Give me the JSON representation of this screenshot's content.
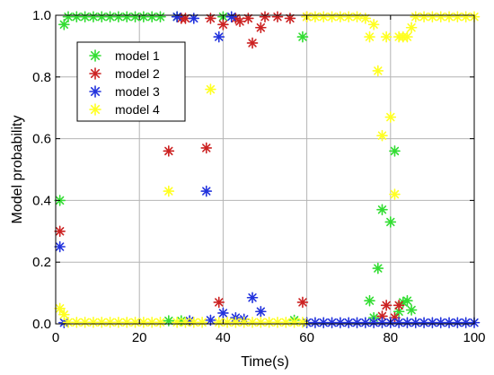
{
  "chart_data": {
    "type": "scatter",
    "title": "",
    "xlabel": "Time(s)",
    "ylabel": "Model probability",
    "xlim": [
      0,
      100
    ],
    "ylim": [
      0,
      1.0
    ],
    "xticks": [
      0,
      20,
      40,
      60,
      80,
      100
    ],
    "xtick_labels": [
      "0",
      "20",
      "40",
      "60",
      "80",
      "100"
    ],
    "yticks": [
      0.0,
      0.2,
      0.4,
      0.6,
      0.8,
      1.0
    ],
    "ytick_labels": [
      "0.0",
      "0.2",
      "0.4",
      "0.6",
      "0.8",
      "1.0"
    ],
    "grid": true,
    "legend_position": "top-left",
    "series": [
      {
        "name": "model 1",
        "color": "#33dd33",
        "points": [
          [
            1,
            0.4
          ],
          [
            2,
            0.97
          ],
          [
            3,
            0.995
          ],
          [
            5,
            0.995
          ],
          [
            7,
            0.995
          ],
          [
            9,
            0.995
          ],
          [
            11,
            0.995
          ],
          [
            13,
            0.995
          ],
          [
            15,
            0.995
          ],
          [
            17,
            0.995
          ],
          [
            19,
            0.995
          ],
          [
            21,
            0.995
          ],
          [
            23,
            0.995
          ],
          [
            25,
            0.995
          ],
          [
            27,
            0.01
          ],
          [
            29,
            0.995
          ],
          [
            30,
            0.01
          ],
          [
            40,
            0.995
          ],
          [
            57,
            0.012
          ],
          [
            59,
            0.93
          ],
          [
            75,
            0.075
          ],
          [
            76,
            0.02
          ],
          [
            77,
            0.18
          ],
          [
            78,
            0.37
          ],
          [
            80,
            0.33
          ],
          [
            81,
            0.56
          ],
          [
            82,
            0.04
          ],
          [
            83,
            0.07
          ],
          [
            84,
            0.075
          ],
          [
            85,
            0.045
          ]
        ]
      },
      {
        "name": "model 2",
        "color": "#cc2222",
        "points": [
          [
            1,
            0.3
          ],
          [
            27,
            0.56
          ],
          [
            30,
            0.99
          ],
          [
            31,
            0.99
          ],
          [
            36,
            0.57
          ],
          [
            37,
            0.99
          ],
          [
            39,
            0.07
          ],
          [
            40,
            0.97
          ],
          [
            43,
            0.99
          ],
          [
            44,
            0.98
          ],
          [
            46,
            0.99
          ],
          [
            47,
            0.91
          ],
          [
            49,
            0.96
          ],
          [
            50,
            0.995
          ],
          [
            53,
            0.995
          ],
          [
            56,
            0.99
          ],
          [
            59,
            0.07
          ],
          [
            60,
            0.995
          ],
          [
            78,
            0.025
          ],
          [
            79,
            0.06
          ],
          [
            81,
            0.02
          ],
          [
            82,
            0.06
          ]
        ]
      },
      {
        "name": "model 3",
        "color": "#2233dd",
        "points": [
          [
            1,
            0.25
          ],
          [
            2,
            0.004
          ],
          [
            29,
            0.995
          ],
          [
            32,
            0.01
          ],
          [
            33,
            0.99
          ],
          [
            36,
            0.43
          ],
          [
            37,
            0.012
          ],
          [
            39,
            0.93
          ],
          [
            40,
            0.035
          ],
          [
            42,
            0.995
          ],
          [
            43,
            0.02
          ],
          [
            45,
            0.015
          ],
          [
            47,
            0.085
          ],
          [
            49,
            0.04
          ],
          [
            60,
            0.004
          ],
          [
            62,
            0.004
          ],
          [
            64,
            0.004
          ],
          [
            66,
            0.004
          ],
          [
            68,
            0.004
          ],
          [
            70,
            0.004
          ],
          [
            72,
            0.004
          ],
          [
            74,
            0.004
          ],
          [
            76,
            0.004
          ],
          [
            78,
            0.004
          ],
          [
            80,
            0.004
          ],
          [
            82,
            0.004
          ],
          [
            84,
            0.004
          ],
          [
            86,
            0.004
          ],
          [
            88,
            0.004
          ],
          [
            90,
            0.004
          ],
          [
            92,
            0.004
          ],
          [
            94,
            0.004
          ],
          [
            96,
            0.004
          ],
          [
            98,
            0.004
          ],
          [
            100,
            0.004
          ]
        ]
      },
      {
        "name": "model 4",
        "color": "#ffff22",
        "points": [
          [
            1,
            0.05
          ],
          [
            2,
            0.03
          ],
          [
            3,
            0.005
          ],
          [
            5,
            0.005
          ],
          [
            7,
            0.005
          ],
          [
            9,
            0.005
          ],
          [
            11,
            0.005
          ],
          [
            13,
            0.005
          ],
          [
            15,
            0.005
          ],
          [
            17,
            0.005
          ],
          [
            19,
            0.005
          ],
          [
            21,
            0.005
          ],
          [
            23,
            0.005
          ],
          [
            25,
            0.005
          ],
          [
            27,
            0.43
          ],
          [
            29,
            0.005
          ],
          [
            31,
            0.005
          ],
          [
            33,
            0.005
          ],
          [
            35,
            0.005
          ],
          [
            37,
            0.76
          ],
          [
            39,
            0.005
          ],
          [
            41,
            0.005
          ],
          [
            43,
            0.005
          ],
          [
            45,
            0.005
          ],
          [
            47,
            0.005
          ],
          [
            49,
            0.005
          ],
          [
            51,
            0.005
          ],
          [
            53,
            0.005
          ],
          [
            55,
            0.005
          ],
          [
            57,
            0.005
          ],
          [
            59,
            0.005
          ],
          [
            60,
            0.995
          ],
          [
            62,
            0.995
          ],
          [
            64,
            0.995
          ],
          [
            66,
            0.995
          ],
          [
            68,
            0.995
          ],
          [
            70,
            0.995
          ],
          [
            72,
            0.995
          ],
          [
            74,
            0.99
          ],
          [
            75,
            0.93
          ],
          [
            76,
            0.97
          ],
          [
            77,
            0.82
          ],
          [
            78,
            0.61
          ],
          [
            79,
            0.93
          ],
          [
            80,
            0.67
          ],
          [
            81,
            0.42
          ],
          [
            82,
            0.93
          ],
          [
            83,
            0.93
          ],
          [
            84,
            0.93
          ],
          [
            85,
            0.96
          ],
          [
            86,
            0.995
          ],
          [
            88,
            0.995
          ],
          [
            90,
            0.995
          ],
          [
            92,
            0.995
          ],
          [
            94,
            0.995
          ],
          [
            96,
            0.995
          ],
          [
            98,
            0.995
          ],
          [
            100,
            0.995
          ]
        ]
      }
    ]
  }
}
